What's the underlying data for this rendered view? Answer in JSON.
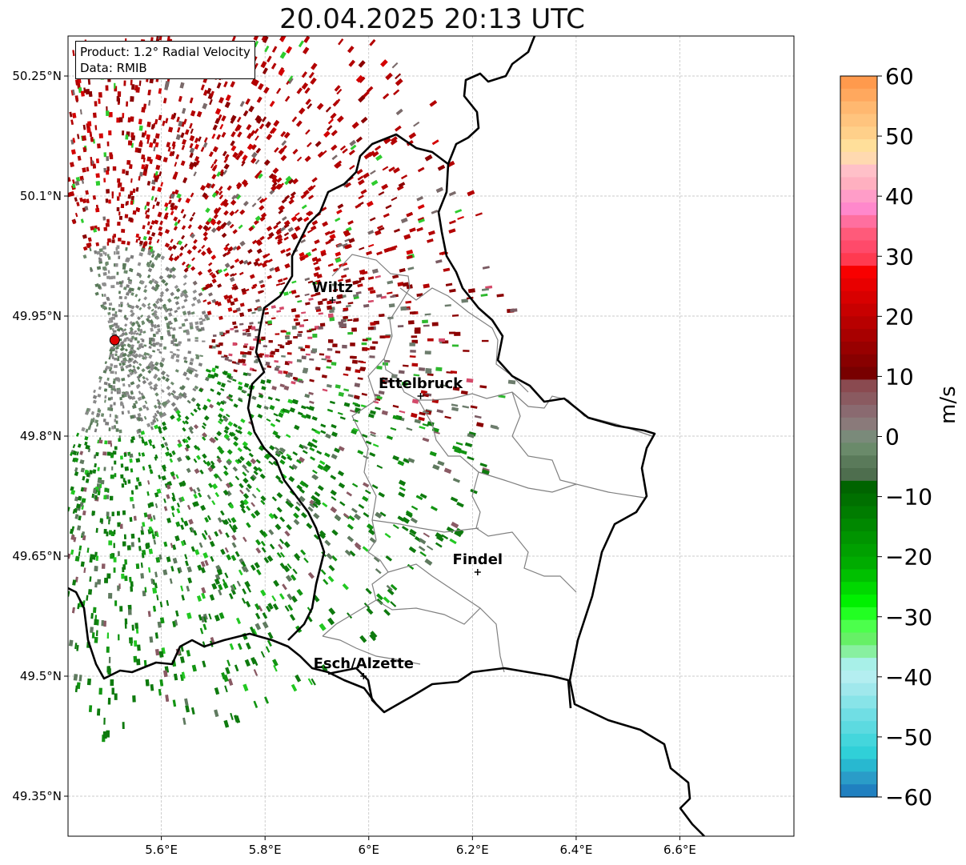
{
  "title": "20.04.2025 20:13 UTC",
  "info_box": {
    "product": "Product: 1.2° Radial Velocity",
    "source": "Data: RMIB"
  },
  "axes": {
    "x_ticks": [
      "5.6°E",
      "5.8°E",
      "6°E",
      "6.2°E",
      "6.4°E",
      "6.6°E"
    ],
    "y_ticks": [
      "50.25°N",
      "50.1°N",
      "49.95°N",
      "49.8°N",
      "49.65°N",
      "49.5°N",
      "49.35°N"
    ],
    "lon_range": [
      5.42,
      6.82
    ],
    "lat_range": [
      49.3,
      50.3
    ],
    "grid": true
  },
  "cities": [
    {
      "name": "Wiltz",
      "lon": 5.93,
      "lat": 49.97
    },
    {
      "name": "Ettelbruck",
      "lon": 6.1,
      "lat": 49.85
    },
    {
      "name": "Findel",
      "lon": 6.21,
      "lat": 49.63
    },
    {
      "name": "Esch/Alzette",
      "lon": 5.99,
      "lat": 49.5
    }
  ],
  "radar_site": {
    "lon": 5.51,
    "lat": 49.92,
    "color": "#e00000"
  },
  "colorbar": {
    "label": "m/s",
    "range": [
      -60,
      60
    ],
    "ticks": [
      "60",
      "50",
      "40",
      "30",
      "20",
      "10",
      "0",
      "−10",
      "−20",
      "−30",
      "−40",
      "−50",
      "−60"
    ]
  },
  "colors": {
    "border_country": "#000000",
    "border_canton": "#808080",
    "grid": "#bbbbbb"
  }
}
